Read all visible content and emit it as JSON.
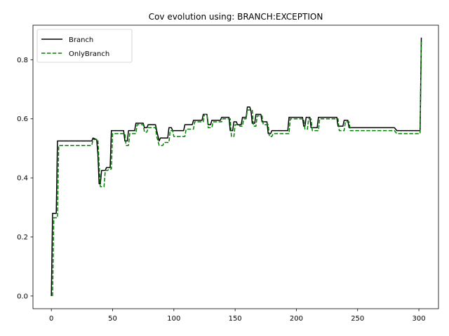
{
  "chart_data": {
    "type": "line",
    "title": "Cov evolution using: BRANCH:EXCEPTION",
    "xlabel": "",
    "ylabel": "",
    "xlim": [
      -15,
      316
    ],
    "ylim": [
      -0.043,
      0.917
    ],
    "xticks": [
      0,
      50,
      100,
      150,
      200,
      250,
      300
    ],
    "yticks": [
      0.0,
      0.2,
      0.4,
      0.6,
      0.8
    ],
    "xtick_labels": [
      "0",
      "50",
      "100",
      "150",
      "200",
      "250",
      "300"
    ],
    "ytick_labels": [
      "0.0",
      "0.2",
      "0.4",
      "0.6",
      "0.8"
    ],
    "grid": false,
    "legend_position": "top-left",
    "series": [
      {
        "name": "Branch",
        "color": "#000000",
        "dash": "solid",
        "points": [
          [
            0,
            0
          ],
          [
            1,
            0.28
          ],
          [
            4,
            0.28
          ],
          [
            5,
            0.525
          ],
          [
            33,
            0.525
          ],
          [
            34,
            0.535
          ],
          [
            37,
            0.53
          ],
          [
            38,
            0.48
          ],
          [
            39,
            0.38
          ],
          [
            40,
            0.38
          ],
          [
            41,
            0.425
          ],
          [
            44,
            0.425
          ],
          [
            45,
            0.435
          ],
          [
            48,
            0.435
          ],
          [
            49,
            0.56
          ],
          [
            59,
            0.56
          ],
          [
            60,
            0.525
          ],
          [
            62,
            0.525
          ],
          [
            63,
            0.56
          ],
          [
            68,
            0.56
          ],
          [
            69,
            0.585
          ],
          [
            75,
            0.585
          ],
          [
            76,
            0.57
          ],
          [
            78,
            0.57
          ],
          [
            79,
            0.58
          ],
          [
            85,
            0.58
          ],
          [
            86,
            0.56
          ],
          [
            88,
            0.525
          ],
          [
            89,
            0.535
          ],
          [
            95,
            0.535
          ],
          [
            96,
            0.57
          ],
          [
            98,
            0.57
          ],
          [
            99,
            0.56
          ],
          [
            108,
            0.56
          ],
          [
            109,
            0.58
          ],
          [
            115,
            0.58
          ],
          [
            116,
            0.595
          ],
          [
            123,
            0.595
          ],
          [
            124,
            0.615
          ],
          [
            127,
            0.615
          ],
          [
            128,
            0.58
          ],
          [
            130,
            0.58
          ],
          [
            131,
            0.595
          ],
          [
            138,
            0.595
          ],
          [
            139,
            0.605
          ],
          [
            145,
            0.605
          ],
          [
            146,
            0.56
          ],
          [
            148,
            0.56
          ],
          [
            149,
            0.59
          ],
          [
            151,
            0.59
          ],
          [
            152,
            0.58
          ],
          [
            155,
            0.58
          ],
          [
            156,
            0.605
          ],
          [
            159,
            0.605
          ],
          [
            160,
            0.64
          ],
          [
            162,
            0.64
          ],
          [
            163,
            0.625
          ],
          [
            164,
            0.585
          ],
          [
            166,
            0.585
          ],
          [
            167,
            0.615
          ],
          [
            171,
            0.615
          ],
          [
            172,
            0.59
          ],
          [
            176,
            0.59
          ],
          [
            177,
            0.55
          ],
          [
            179,
            0.55
          ],
          [
            180,
            0.56
          ],
          [
            193,
            0.56
          ],
          [
            194,
            0.605
          ],
          [
            205,
            0.605
          ],
          [
            206,
            0.575
          ],
          [
            207,
            0.575
          ],
          [
            208,
            0.605
          ],
          [
            211,
            0.605
          ],
          [
            212,
            0.57
          ],
          [
            217,
            0.57
          ],
          [
            218,
            0.605
          ],
          [
            233,
            0.605
          ],
          [
            234,
            0.575
          ],
          [
            238,
            0.575
          ],
          [
            239,
            0.595
          ],
          [
            242,
            0.595
          ],
          [
            243,
            0.57
          ],
          [
            280,
            0.57
          ],
          [
            282,
            0.56
          ],
          [
            301,
            0.56
          ],
          [
            302,
            0.875
          ]
        ]
      },
      {
        "name": "OnlyBranch",
        "color": "#008000",
        "dash": "dashed",
        "points": [
          [
            1,
            0
          ],
          [
            2,
            0.265
          ],
          [
            5,
            0.265
          ],
          [
            6,
            0.51
          ],
          [
            33,
            0.51
          ],
          [
            34,
            0.53
          ],
          [
            38,
            0.53
          ],
          [
            39,
            0.445
          ],
          [
            40,
            0.37
          ],
          [
            43,
            0.37
          ],
          [
            44,
            0.425
          ],
          [
            46,
            0.425
          ],
          [
            47,
            0.43
          ],
          [
            49,
            0.43
          ],
          [
            50,
            0.55
          ],
          [
            60,
            0.55
          ],
          [
            61,
            0.51
          ],
          [
            63,
            0.51
          ],
          [
            64,
            0.55
          ],
          [
            69,
            0.55
          ],
          [
            70,
            0.58
          ],
          [
            75,
            0.58
          ],
          [
            76,
            0.555
          ],
          [
            78,
            0.555
          ],
          [
            79,
            0.57
          ],
          [
            85,
            0.57
          ],
          [
            86,
            0.54
          ],
          [
            88,
            0.51
          ],
          [
            91,
            0.51
          ],
          [
            92,
            0.52
          ],
          [
            96,
            0.52
          ],
          [
            97,
            0.56
          ],
          [
            99,
            0.56
          ],
          [
            100,
            0.54
          ],
          [
            109,
            0.54
          ],
          [
            110,
            0.565
          ],
          [
            116,
            0.565
          ],
          [
            117,
            0.59
          ],
          [
            124,
            0.59
          ],
          [
            125,
            0.615
          ],
          [
            127,
            0.615
          ],
          [
            128,
            0.57
          ],
          [
            131,
            0.57
          ],
          [
            132,
            0.59
          ],
          [
            139,
            0.59
          ],
          [
            140,
            0.6
          ],
          [
            146,
            0.6
          ],
          [
            147,
            0.54
          ],
          [
            149,
            0.54
          ],
          [
            150,
            0.58
          ],
          [
            153,
            0.58
          ],
          [
            154,
            0.575
          ],
          [
            156,
            0.575
          ],
          [
            157,
            0.6
          ],
          [
            159,
            0.6
          ],
          [
            160,
            0.63
          ],
          [
            164,
            0.63
          ],
          [
            165,
            0.575
          ],
          [
            167,
            0.575
          ],
          [
            168,
            0.61
          ],
          [
            172,
            0.61
          ],
          [
            173,
            0.58
          ],
          [
            177,
            0.58
          ],
          [
            178,
            0.54
          ],
          [
            180,
            0.54
          ],
          [
            181,
            0.55
          ],
          [
            194,
            0.55
          ],
          [
            195,
            0.6
          ],
          [
            206,
            0.6
          ],
          [
            207,
            0.565
          ],
          [
            209,
            0.565
          ],
          [
            210,
            0.6
          ],
          [
            212,
            0.6
          ],
          [
            213,
            0.56
          ],
          [
            218,
            0.56
          ],
          [
            219,
            0.6
          ],
          [
            234,
            0.6
          ],
          [
            235,
            0.56
          ],
          [
            239,
            0.56
          ],
          [
            240,
            0.59
          ],
          [
            243,
            0.59
          ],
          [
            244,
            0.56
          ],
          [
            280,
            0.56
          ],
          [
            282,
            0.55
          ],
          [
            301,
            0.55
          ],
          [
            302,
            0.86
          ]
        ]
      }
    ]
  }
}
